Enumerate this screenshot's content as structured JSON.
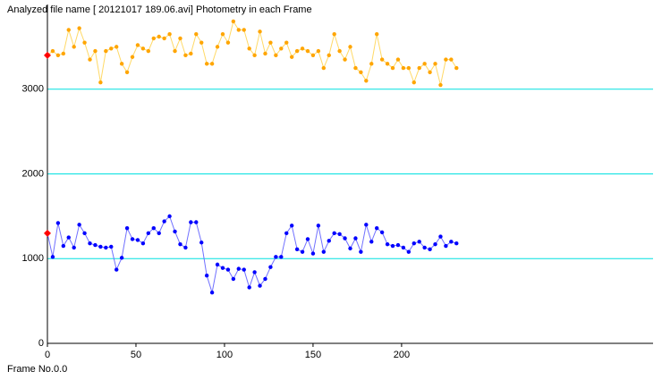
{
  "chart_data": {
    "type": "line",
    "title": "Analyzed file name [ 20121017 189.06.avi]    Photometry in each Frame",
    "footer": "Frame No.0.0",
    "x": [
      0,
      3,
      6,
      9,
      12,
      15,
      18,
      21,
      24,
      27,
      30,
      33,
      36,
      39,
      42,
      45,
      48,
      51,
      54,
      57,
      60,
      63,
      66,
      69,
      72,
      75,
      78,
      81,
      84,
      87,
      90,
      93,
      96,
      99,
      102,
      105,
      108,
      111,
      114,
      117,
      120,
      123,
      126,
      129,
      132,
      135,
      138,
      141,
      144,
      147,
      150,
      153,
      156,
      159,
      162,
      165,
      168,
      171,
      174,
      177,
      180,
      183,
      186,
      189,
      192,
      195,
      198,
      201,
      204,
      207,
      210,
      213,
      216,
      219,
      222,
      225,
      228,
      231
    ],
    "series": [
      {
        "color": "#ffa500",
        "line_color": "#ffd966",
        "values": [
          3400,
          3450,
          3400,
          3420,
          3700,
          3500,
          3720,
          3550,
          3350,
          3450,
          3080,
          3450,
          3480,
          3500,
          3300,
          3200,
          3380,
          3520,
          3480,
          3450,
          3600,
          3620,
          3600,
          3650,
          3450,
          3600,
          3400,
          3420,
          3650,
          3550,
          3300,
          3300,
          3500,
          3650,
          3550,
          3800,
          3700,
          3700,
          3480,
          3400,
          3680,
          3420,
          3550,
          3400,
          3480,
          3550,
          3380,
          3450,
          3480,
          3450,
          3400,
          3450,
          3250,
          3400,
          3650,
          3450,
          3350,
          3500,
          3250,
          3200,
          3100,
          3300,
          3650,
          3350,
          3300,
          3250,
          3350,
          3250,
          3250,
          3080,
          3250,
          3300,
          3200,
          3300,
          3050,
          3350,
          3350,
          3250
        ]
      },
      {
        "color": "#0000ff",
        "line_color": "#7070ff",
        "values": [
          1300,
          1020,
          1420,
          1150,
          1250,
          1130,
          1400,
          1300,
          1180,
          1160,
          1140,
          1130,
          1140,
          870,
          1010,
          1360,
          1230,
          1220,
          1180,
          1300,
          1360,
          1300,
          1440,
          1500,
          1320,
          1170,
          1130,
          1430,
          1430,
          1190,
          800,
          600,
          930,
          890,
          870,
          760,
          880,
          870,
          660,
          840,
          680,
          760,
          900,
          1020,
          1020,
          1300,
          1390,
          1110,
          1080,
          1230,
          1060,
          1390,
          1080,
          1210,
          1300,
          1290,
          1240,
          1120,
          1240,
          1080,
          1400,
          1200,
          1360,
          1310,
          1170,
          1150,
          1160,
          1130,
          1080,
          1180,
          1200,
          1130,
          1110,
          1170,
          1260,
          1150,
          1200,
          1180
        ]
      }
    ],
    "first_marker_color": "#ff0000",
    "xlim": [
      0,
      342
    ],
    "xticks": [
      0,
      50,
      100,
      150,
      200
    ],
    "ylim": [
      0,
      4000
    ],
    "yticks": [
      0,
      1000,
      2000,
      3000
    ],
    "grid": true,
    "grid_color": "#00e0e0"
  }
}
